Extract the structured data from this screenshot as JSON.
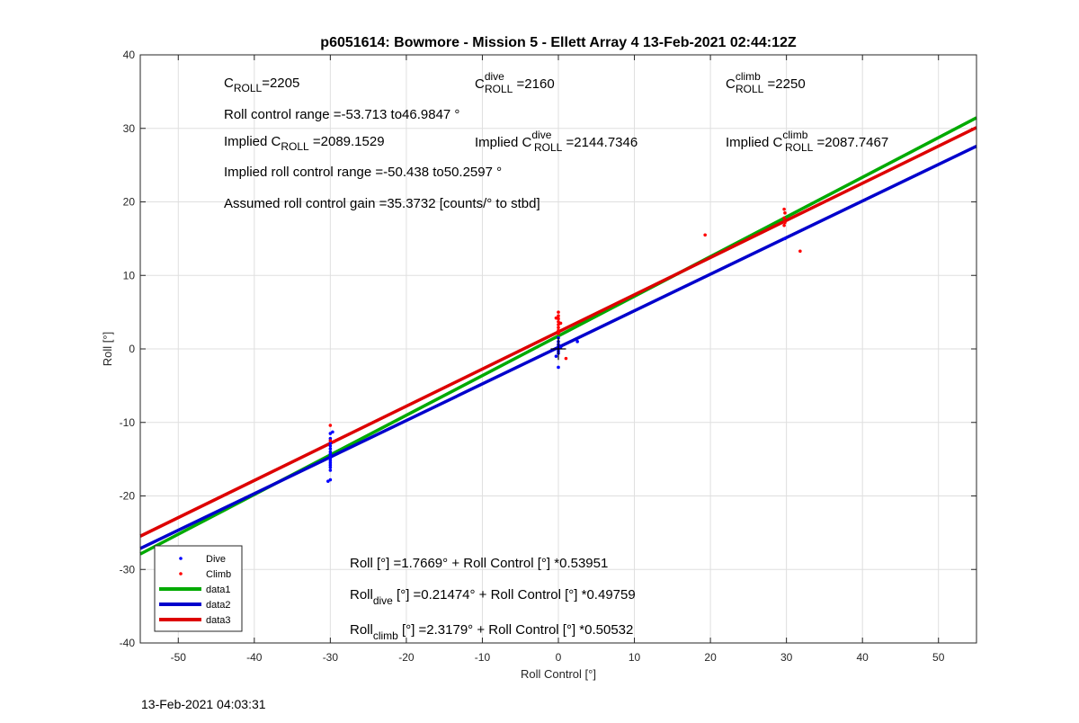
{
  "footer_timestamp": "13-Feb-2021 04:03:31",
  "annotations": {
    "c_roll": {
      "base": "C",
      "sub": "ROLL",
      "value": "=2205"
    },
    "c_roll_dive": {
      "base": "C",
      "sup": "dive",
      "sub": "ROLL",
      "value": " =2160"
    },
    "c_roll_climb": {
      "base": "C",
      "sup": "climb",
      "sub": "ROLL",
      "value": " =2250"
    },
    "roll_control_range": "Roll control range =-53.713 to46.9847 °",
    "implied_c_roll": {
      "prefix": "Implied C",
      "sub": "ROLL",
      "value": " =2089.1529"
    },
    "implied_c_roll_dive": {
      "prefix": "Implied C",
      "sup": "dive",
      "sub": "ROLL",
      "value": " =2144.7346"
    },
    "implied_c_roll_climb": {
      "prefix": "Implied C",
      "sup": "climb",
      "sub": "ROLL",
      "value": " =2087.7467"
    },
    "implied_roll_control_range": "Implied roll control range =-50.438 to50.2597 °",
    "assumed_gain": "Assumed roll control gain =35.3732 [counts/° to stbd]",
    "fit_all": "Roll [°] =1.7669° + Roll Control [°] *0.53951",
    "fit_dive": {
      "base": "Roll",
      "sub": "dive",
      "rest": " [°] =0.21474° + Roll Control [°] *0.49759"
    },
    "fit_climb": {
      "base": "Roll",
      "sub": "climb",
      "rest": " [°] =2.3179° + Roll Control [°] *0.50532"
    }
  },
  "chart_data": {
    "type": "scatter",
    "title": "p6051614: Bowmore - Mission 5 - Ellett Array 4 13-Feb-2021 02:44:12Z",
    "xlabel": "Roll Control [°]",
    "ylabel": "Roll [°]",
    "xlim": [
      -55,
      55
    ],
    "ylim": [
      -40,
      40
    ],
    "xticks": [
      -50,
      -40,
      -30,
      -20,
      -10,
      0,
      10,
      20,
      30,
      40,
      50
    ],
    "yticks": [
      -40,
      -30,
      -20,
      -10,
      0,
      10,
      20,
      30,
      40
    ],
    "grid": true,
    "legend_position": "bottom-left",
    "series": [
      {
        "name": "Dive",
        "kind": "points",
        "color": "#0000ff",
        "points": [
          [
            -30,
            -11.5
          ],
          [
            -30,
            -12.2
          ],
          [
            -30,
            -12.8
          ],
          [
            -30,
            -13.2
          ],
          [
            -30,
            -13.6
          ],
          [
            -30,
            -14.0
          ],
          [
            -30,
            -14.3
          ],
          [
            -30,
            -14.6
          ],
          [
            -30,
            -14.9
          ],
          [
            -30,
            -15.2
          ],
          [
            -30,
            -15.5
          ],
          [
            -30,
            -15.8
          ],
          [
            -30,
            -16.1
          ],
          [
            -30,
            -16.5
          ],
          [
            -30,
            -17.8
          ],
          [
            -30.3,
            -18.0
          ],
          [
            -29.7,
            -11.3
          ],
          [
            0,
            1.5
          ],
          [
            0,
            1.0
          ],
          [
            0,
            0.6
          ],
          [
            0,
            0.3
          ],
          [
            0,
            0.0
          ],
          [
            0,
            -0.3
          ],
          [
            0,
            -0.6
          ],
          [
            -0.3,
            -1.0
          ],
          [
            0.3,
            0.2
          ],
          [
            0,
            -2.5
          ],
          [
            2.5,
            1.0
          ],
          [
            29.8,
            15.0
          ]
        ]
      },
      {
        "name": "Climb",
        "kind": "points",
        "color": "#ff0000",
        "points": [
          [
            -30,
            -10.4
          ],
          [
            -30,
            -12.5
          ],
          [
            -29.5,
            -12.6
          ],
          [
            0,
            5.0
          ],
          [
            0,
            4.5
          ],
          [
            0,
            4.1
          ],
          [
            0,
            3.7
          ],
          [
            0,
            3.3
          ],
          [
            0,
            2.9
          ],
          [
            0,
            2.5
          ],
          [
            0,
            2.1
          ],
          [
            -0.3,
            4.2
          ],
          [
            0.3,
            3.5
          ],
          [
            1.0,
            -1.3
          ],
          [
            19.3,
            15.5
          ],
          [
            29.7,
            19.0
          ],
          [
            29.8,
            18.5
          ],
          [
            29.7,
            17.8
          ],
          [
            29.8,
            17.2
          ],
          [
            29.7,
            16.8
          ],
          [
            31.8,
            13.3
          ]
        ]
      },
      {
        "name": "data1",
        "kind": "line",
        "color": "#00aa00",
        "intercept": 1.7669,
        "slope": 0.53951,
        "x": [
          -55,
          55
        ]
      },
      {
        "name": "data2",
        "kind": "line",
        "color": "#0000cc",
        "intercept": 0.21474,
        "slope": 0.49759,
        "x": [
          -55,
          55
        ]
      },
      {
        "name": "data3",
        "kind": "line",
        "color": "#dd0000",
        "intercept": 2.3179,
        "slope": 0.50532,
        "x": [
          -55,
          55
        ]
      }
    ]
  }
}
